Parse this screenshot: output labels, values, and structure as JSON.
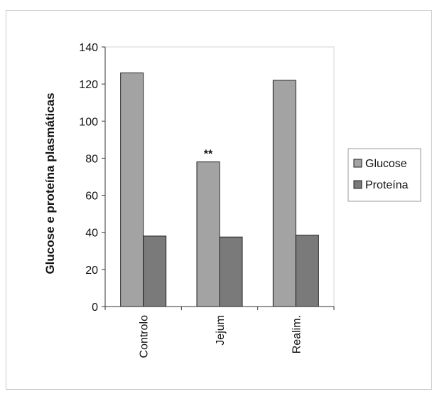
{
  "chart_data": {
    "type": "bar",
    "title": "",
    "xlabel": "",
    "ylabel": "Glucose e proteína plasmáticas",
    "categories": [
      "Controlo",
      "Jejum",
      "Realim."
    ],
    "series": [
      {
        "name": "Glucose",
        "values": [
          126,
          78,
          122
        ],
        "color": "#a3a3a3"
      },
      {
        "name": "Proteína",
        "values": [
          38,
          37.5,
          38.5
        ],
        "color": "#7a7a7a"
      }
    ],
    "ylim": [
      0,
      140
    ],
    "yticks": [
      0,
      20,
      40,
      60,
      80,
      100,
      120,
      140
    ],
    "grid": false,
    "legend": "right",
    "annotations": [
      {
        "category": "Jejum",
        "series": "Glucose",
        "text": "**"
      }
    ]
  }
}
